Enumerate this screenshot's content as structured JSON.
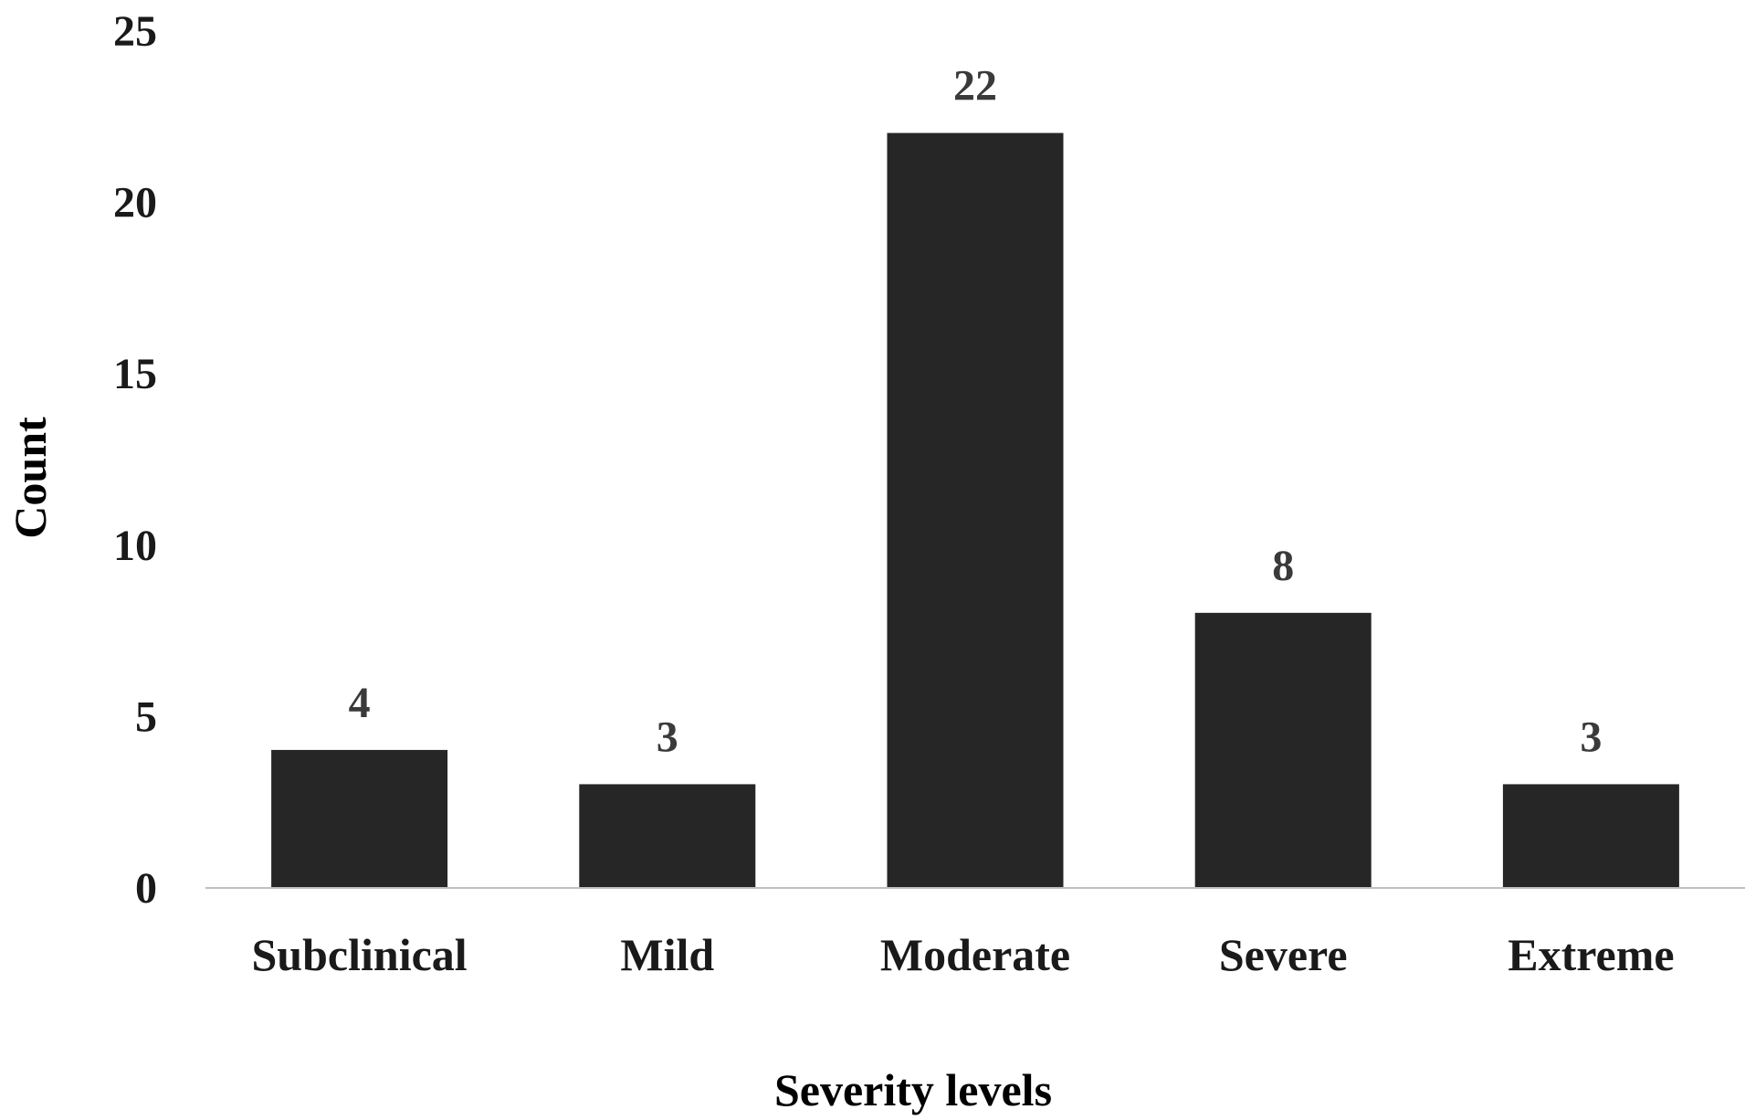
{
  "chart_data": {
    "type": "bar",
    "title": "",
    "xlabel": "Severity levels",
    "ylabel": "Count",
    "categories": [
      "Subclinical",
      "Mild",
      "Moderate",
      "Severe",
      "Extreme"
    ],
    "values": [
      4,
      3,
      22,
      8,
      3
    ],
    "data_labels": [
      "4",
      "3",
      "22",
      "8",
      "3"
    ],
    "ylim": [
      0,
      25
    ],
    "yticks": [
      0,
      5,
      10,
      15,
      20,
      25
    ],
    "ytick_labels": [
      "0",
      "5",
      "10",
      "15",
      "20",
      "25"
    ],
    "grid": false,
    "legend": "none",
    "bar_color": "#262626",
    "axis_color": "#bfbfbf"
  }
}
